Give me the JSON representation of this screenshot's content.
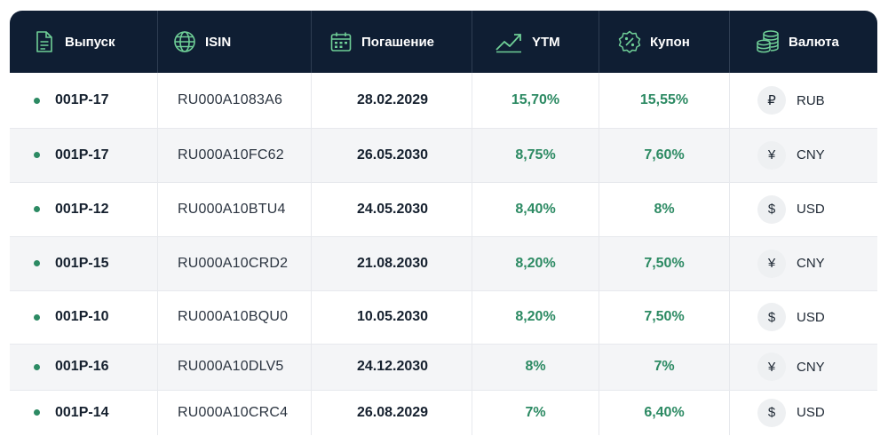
{
  "table": {
    "headers": {
      "issue": "Выпуск",
      "isin": "ISIN",
      "maturity": "Погашение",
      "ytm": "YTM",
      "coupon": "Купон",
      "currency": "Валюта"
    },
    "header_icons": {
      "issue": "document-icon",
      "isin": "globe-icon",
      "maturity": "calendar-icon",
      "ytm": "trend-chart-icon",
      "coupon": "percent-badge-icon",
      "currency": "coins-stack-icon"
    },
    "rows": [
      {
        "issue": "001P-17",
        "isin": "RU000A1083A6",
        "maturity": "28.02.2029",
        "ytm": "15,70%",
        "coupon": "15,55%",
        "currency_symbol": "₽",
        "currency": "RUB"
      },
      {
        "issue": "001P-17",
        "isin": "RU000A10FC62",
        "maturity": "26.05.2030",
        "ytm": "8,75%",
        "coupon": "7,60%",
        "currency_symbol": "¥",
        "currency": "CNY"
      },
      {
        "issue": "001P-12",
        "isin": "RU000A10BTU4",
        "maturity": "24.05.2030",
        "ytm": "8,40%",
        "coupon": "8%",
        "currency_symbol": "$",
        "currency": "USD"
      },
      {
        "issue": "001P-15",
        "isin": "RU000A10CRD2",
        "maturity": "21.08.2030",
        "ytm": "8,20%",
        "coupon": "7,50%",
        "currency_symbol": "¥",
        "currency": "CNY"
      },
      {
        "issue": "001P-10",
        "isin": "RU000A10BQU0",
        "maturity": "10.05.2030",
        "ytm": "8,20%",
        "coupon": "7,50%",
        "currency_symbol": "$",
        "currency": "USD"
      },
      {
        "issue": "001P-16",
        "isin": "RU000A10DLV5",
        "maturity": "24.12.2030",
        "ytm": "8%",
        "coupon": "7%",
        "currency_symbol": "¥",
        "currency": "CNY"
      },
      {
        "issue": "001P-14",
        "isin": "RU000A10CRC4",
        "maturity": "26.08.2029",
        "ytm": "7%",
        "coupon": "6,40%",
        "currency_symbol": "$",
        "currency": "USD"
      }
    ]
  },
  "colors": {
    "header_bg": "#0f1e33",
    "accent_green": "#2c8a63",
    "icon_green": "#6fcf97",
    "row_alt": "#f4f5f7"
  }
}
